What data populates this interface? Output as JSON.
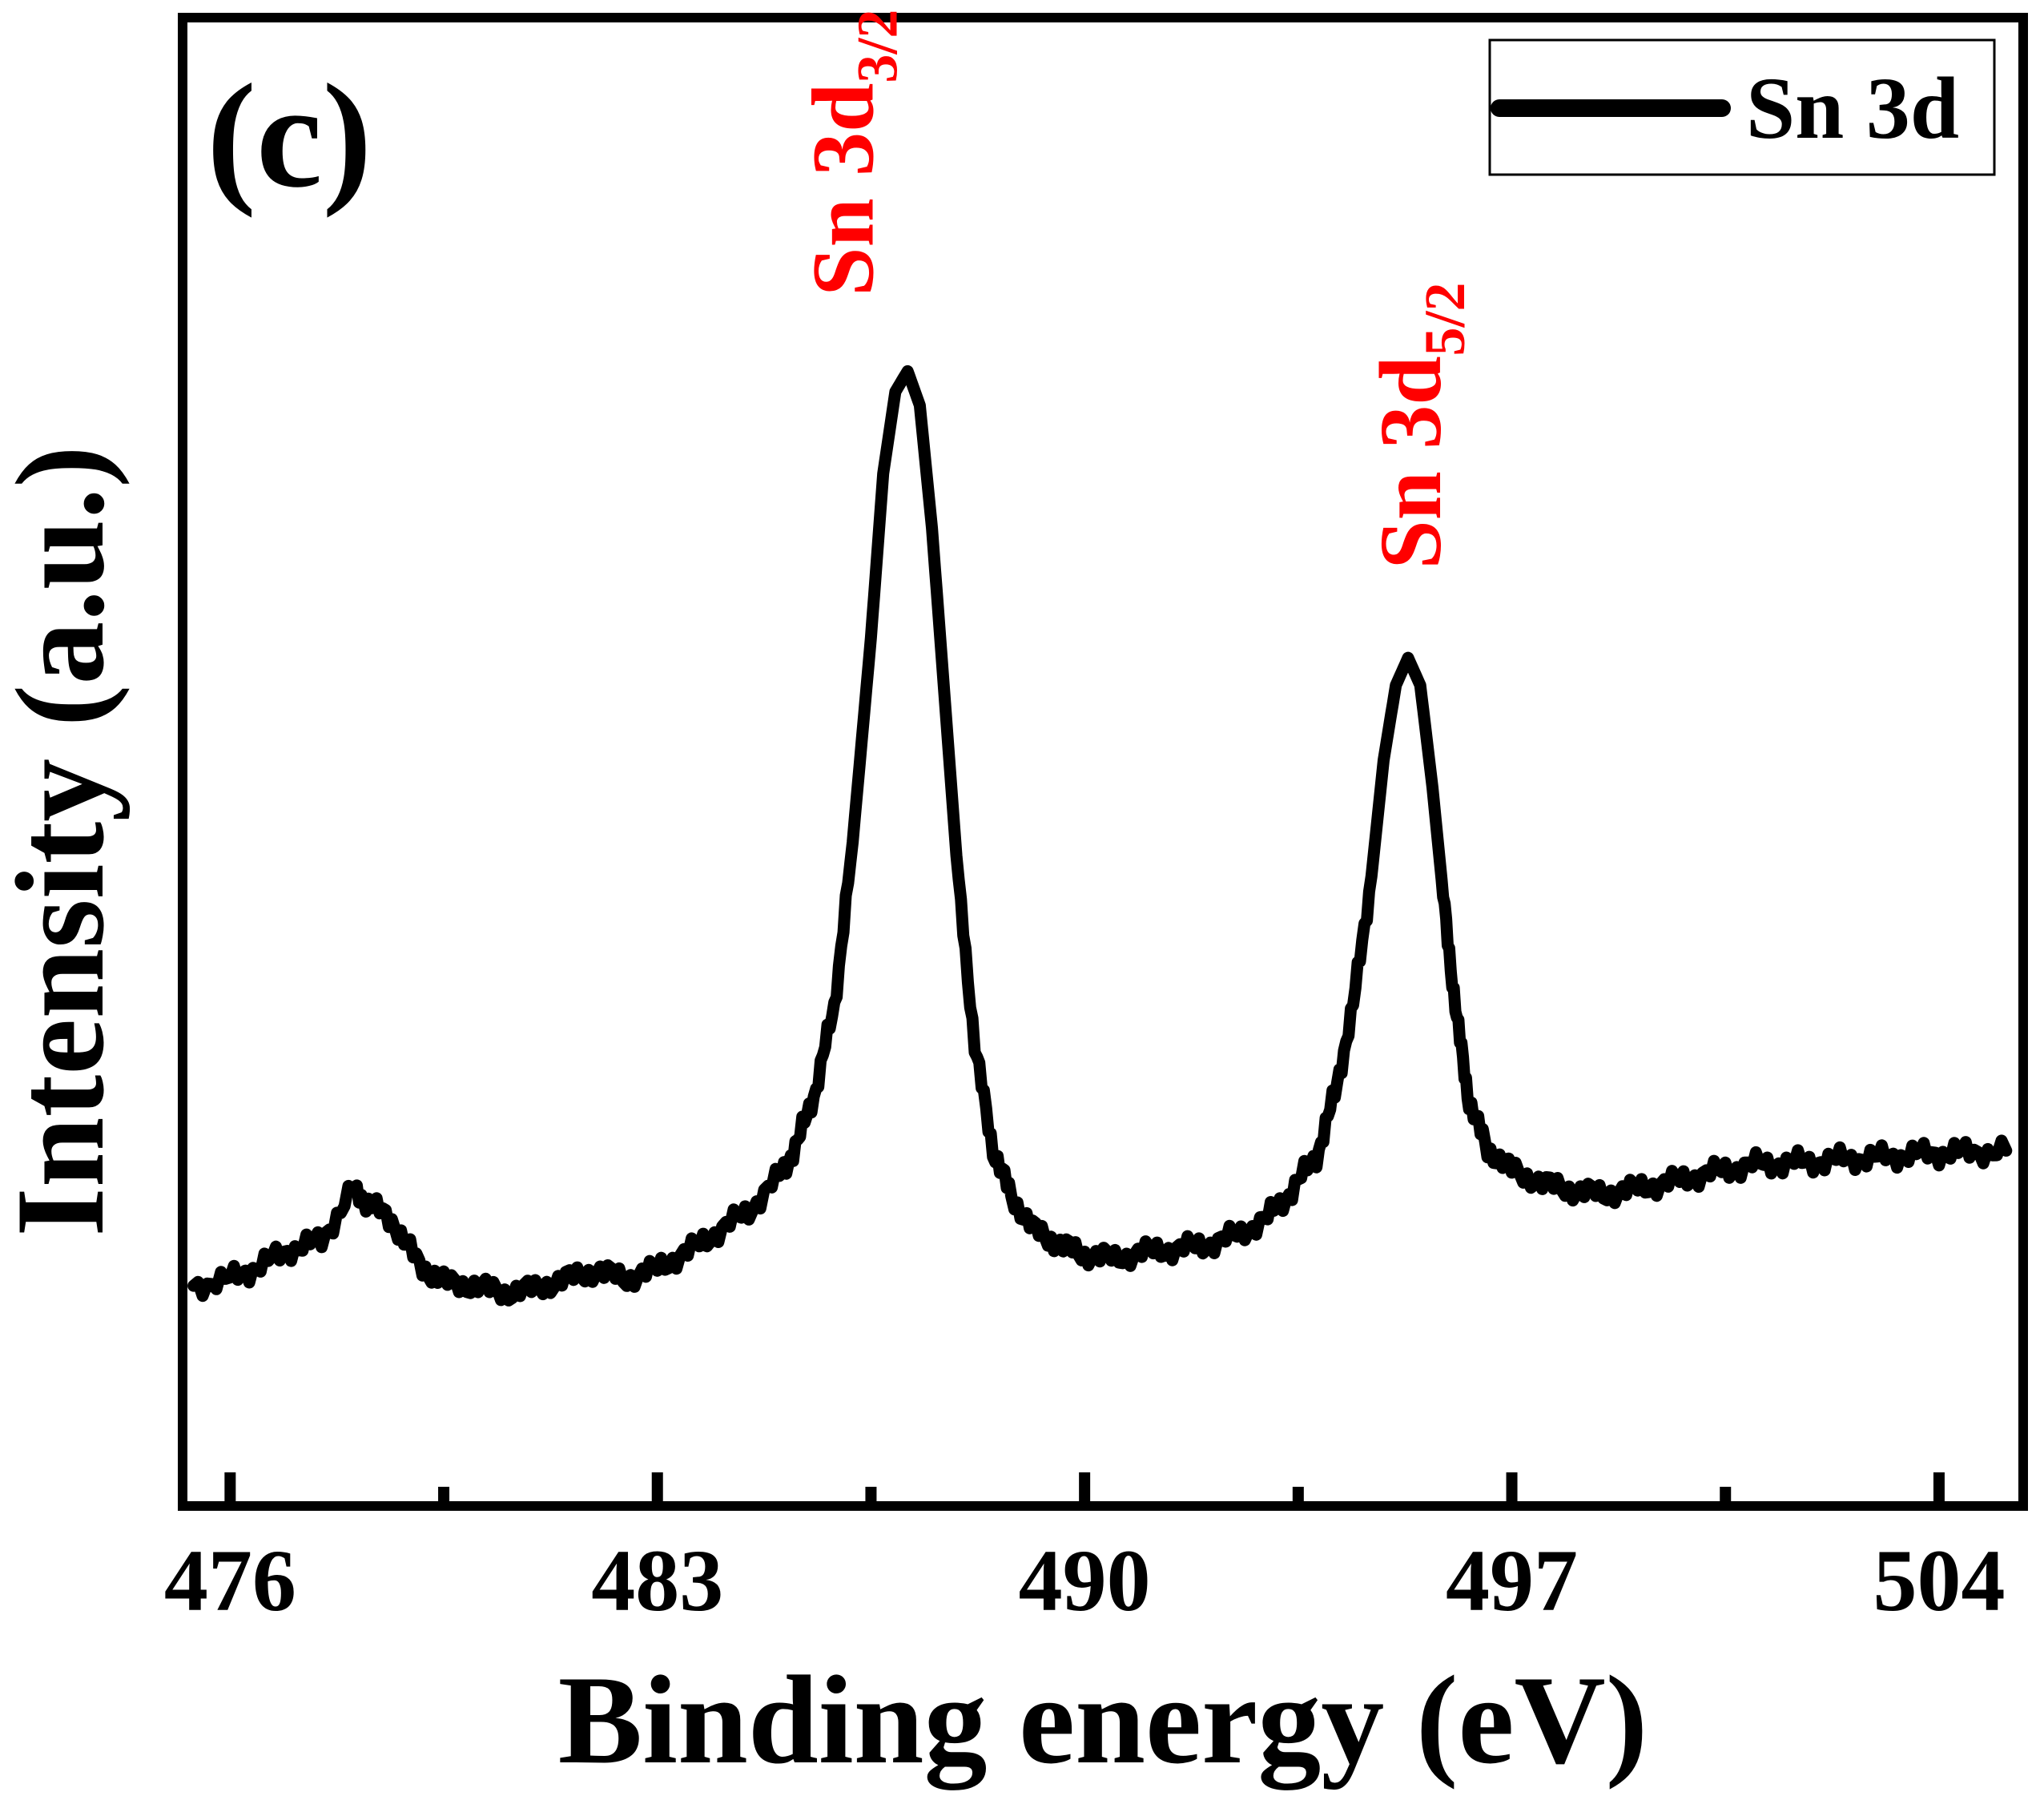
{
  "chart_data": {
    "type": "line",
    "panel_label": "(c)",
    "title": "",
    "xlabel": "Binding energy (eV)",
    "ylabel": "Intensity (a.u.)",
    "xlim": [
      475.3,
      505.3
    ],
    "ylim": [
      0,
      100
    ],
    "y_ticks_shown": false,
    "x_major_ticks": [
      476,
      483,
      490,
      497,
      504
    ],
    "x_tick_labels": [
      "476",
      "483",
      "490",
      "497",
      "504"
    ],
    "x_minor_ticks": [
      479.5,
      486.5,
      493.5,
      500.5
    ],
    "legend": {
      "position": "top-right",
      "entries": [
        "Sn 3d"
      ]
    },
    "series": [
      {
        "name": "Sn 3d",
        "color": "#000000",
        "x": [
          475.4,
          476.0,
          476.5,
          477.0,
          477.5,
          478.0,
          478.3,
          478.7,
          479.1,
          479.5,
          480.0,
          480.5,
          481.0,
          481.5,
          482.0,
          482.5,
          483.0,
          483.5,
          484.0,
          484.5,
          485.0,
          485.3,
          485.6,
          485.9,
          486.2,
          486.5,
          486.7,
          486.9,
          487.1,
          487.3,
          487.5,
          487.7,
          487.9,
          488.2,
          488.5,
          488.8,
          489.2,
          489.6,
          490.0,
          490.5,
          491.0,
          491.5,
          492.0,
          492.5,
          493.0,
          493.4,
          493.8,
          494.1,
          494.4,
          494.7,
          494.9,
          495.1,
          495.3,
          495.5,
          495.7,
          495.9,
          496.1,
          496.3,
          496.6,
          497.0,
          497.5,
          498.0,
          498.5,
          499.0,
          499.5,
          500.0,
          500.5,
          501.0,
          501.5,
          502.0,
          502.5,
          503.0,
          503.5,
          504.0,
          504.5,
          505.1
        ],
        "y": [
          10.5,
          11.0,
          12.0,
          13.2,
          13.8,
          17.5,
          16.5,
          15.0,
          12.0,
          10.8,
          10.5,
          10.0,
          10.3,
          11.0,
          11.6,
          11.0,
          11.8,
          13.0,
          14.5,
          16.0,
          18.5,
          21.0,
          25.0,
          31.0,
          43.0,
          58.0,
          70.0,
          76.0,
          77.5,
          75.0,
          66.0,
          54.0,
          42.0,
          28.0,
          20.5,
          17.0,
          14.5,
          13.5,
          12.8,
          12.5,
          13.0,
          13.2,
          13.5,
          14.2,
          15.5,
          17.5,
          20.0,
          24.5,
          31.0,
          40.5,
          49.0,
          54.5,
          56.5,
          54.5,
          47.0,
          38.0,
          30.0,
          24.0,
          20.5,
          19.0,
          18.0,
          17.5,
          17.2,
          17.6,
          18.0,
          18.5,
          19.0,
          19.4,
          19.5,
          19.6,
          19.8,
          19.9,
          20.1,
          20.2,
          20.3,
          20.4
        ]
      }
    ],
    "annotations": [
      {
        "text": "Sn 3d",
        "subscript": "3/2",
        "color": "#ff0000",
        "x": 486.0,
        "y": 83,
        "rotation": -90
      },
      {
        "text": "Sn 3d",
        "subscript": "5/2",
        "color": "#ff0000",
        "x": 495.3,
        "y": 63,
        "rotation": -90
      }
    ]
  }
}
